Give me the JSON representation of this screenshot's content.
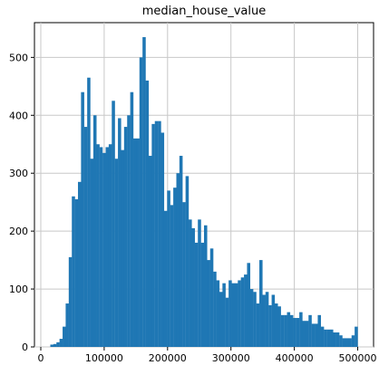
{
  "chart_data": {
    "type": "bar",
    "title": "median_house_value",
    "xlabel": "",
    "ylabel": "",
    "bins": 100,
    "bin_start": 14999,
    "bin_end": 500001,
    "xlim": [
      -10000,
      525000
    ],
    "ylim": [
      0,
      560
    ],
    "grid": true,
    "bar_color": "#1f77b4",
    "x_ticks": [
      0,
      100000,
      200000,
      300000,
      400000,
      500000
    ],
    "x_tick_labels": [
      "0",
      "100000",
      "200000",
      "300000",
      "400000",
      "500000"
    ],
    "y_ticks": [
      0,
      100,
      200,
      300,
      400,
      500
    ],
    "y_tick_labels": [
      "0",
      "100",
      "200",
      "300",
      "400",
      "500"
    ],
    "counts": [
      4,
      5,
      8,
      14,
      35,
      75,
      155,
      260,
      255,
      285,
      440,
      380,
      465,
      325,
      400,
      350,
      345,
      335,
      345,
      350,
      425,
      325,
      395,
      340,
      380,
      400,
      440,
      360,
      360,
      500,
      535,
      460,
      330,
      385,
      390,
      390,
      370,
      235,
      270,
      245,
      275,
      300,
      330,
      250,
      295,
      220,
      205,
      180,
      220,
      180,
      210,
      150,
      170,
      130,
      115,
      95,
      110,
      85,
      115,
      110,
      110,
      115,
      120,
      125,
      145,
      100,
      95,
      75,
      150,
      90,
      95,
      72,
      90,
      75,
      70,
      55,
      55,
      60,
      55,
      50,
      50,
      60,
      45,
      45,
      55,
      40,
      40,
      55,
      35,
      30,
      30,
      30,
      25,
      25,
      20,
      15,
      15,
      15,
      20,
      35
    ]
  }
}
